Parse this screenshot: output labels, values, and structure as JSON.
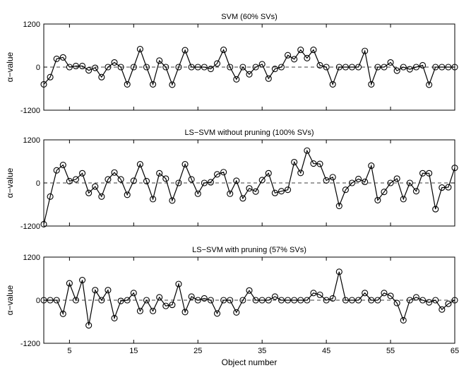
{
  "figure": {
    "xlabel": "Object number"
  },
  "chart_data": [
    {
      "type": "line",
      "title": "SVM (60% SVs)",
      "xlabel": "",
      "ylabel": "α−value",
      "xlim": [
        1,
        65
      ],
      "ylim": [
        -1200,
        1200
      ],
      "yticks": [
        -1200,
        0,
        1200
      ],
      "xticks": [
        5,
        15,
        25,
        35,
        45,
        55,
        65
      ],
      "marker": "circle",
      "reference_line": {
        "y": 0,
        "style": "dashed"
      },
      "x": [
        1,
        2,
        3,
        4,
        5,
        6,
        7,
        8,
        9,
        10,
        11,
        12,
        13,
        14,
        15,
        16,
        17,
        18,
        19,
        20,
        21,
        22,
        23,
        24,
        25,
        26,
        27,
        28,
        29,
        30,
        31,
        32,
        33,
        34,
        35,
        36,
        37,
        38,
        39,
        40,
        41,
        42,
        43,
        44,
        45,
        46,
        47,
        48,
        49,
        50,
        51,
        52,
        53,
        54,
        55,
        56,
        57,
        58,
        59,
        60,
        61,
        62,
        63,
        64,
        65
      ],
      "values": [
        -480,
        -280,
        230,
        270,
        0,
        30,
        30,
        -90,
        -20,
        -280,
        0,
        130,
        0,
        -480,
        0,
        500,
        0,
        -480,
        180,
        0,
        -490,
        0,
        470,
        0,
        0,
        0,
        -50,
        100,
        480,
        0,
        -340,
        0,
        -200,
        0,
        80,
        -320,
        -50,
        0,
        330,
        220,
        480,
        250,
        480,
        50,
        0,
        -480,
        0,
        0,
        0,
        0,
        450,
        -480,
        0,
        0,
        130,
        -100,
        0,
        -60,
        0,
        50,
        -490,
        0,
        0,
        0,
        0
      ]
    },
    {
      "type": "line",
      "title": "LS−SVM without pruning (100% SVs)",
      "xlabel": "",
      "ylabel": "α−value",
      "xlim": [
        1,
        65
      ],
      "ylim": [
        -1200,
        1200
      ],
      "yticks": [
        -1200,
        0,
        1200
      ],
      "xticks": [
        5,
        15,
        25,
        35,
        45,
        55,
        65
      ],
      "marker": "circle",
      "reference_line": {
        "y": 0,
        "style": "dashed"
      },
      "x": [
        1,
        2,
        3,
        4,
        5,
        6,
        7,
        8,
        9,
        10,
        11,
        12,
        13,
        14,
        15,
        16,
        17,
        18,
        19,
        20,
        21,
        22,
        23,
        24,
        25,
        26,
        27,
        28,
        29,
        30,
        31,
        32,
        33,
        34,
        35,
        36,
        37,
        38,
        39,
        40,
        41,
        42,
        43,
        44,
        45,
        46,
        47,
        48,
        49,
        50,
        51,
        52,
        53,
        54,
        55,
        56,
        57,
        58,
        59,
        60,
        61,
        62,
        63,
        64,
        65
      ],
      "values": [
        -1150,
        -380,
        350,
        500,
        50,
        100,
        270,
        -280,
        -100,
        -380,
        100,
        290,
        100,
        -330,
        60,
        520,
        50,
        -450,
        270,
        120,
        -490,
        0,
        520,
        100,
        -300,
        0,
        20,
        240,
        300,
        -300,
        60,
        -430,
        -150,
        -240,
        80,
        270,
        -280,
        -230,
        -190,
        580,
        280,
        900,
        540,
        530,
        70,
        160,
        -640,
        -190,
        0,
        110,
        30,
        480,
        -480,
        -250,
        0,
        120,
        -450,
        0,
        -230,
        270,
        270,
        -730,
        -130,
        -120,
        420
      ]
    },
    {
      "type": "line",
      "title": "LS−SVM with pruning (57% SVs)",
      "xlabel": "Object number",
      "ylabel": "α−value",
      "xlim": [
        1,
        65
      ],
      "ylim": [
        -1200,
        1200
      ],
      "yticks": [
        -1200,
        0,
        1200
      ],
      "xticks": [
        5,
        15,
        25,
        35,
        45,
        55,
        65
      ],
      "marker": "circle",
      "reference_line": {
        "y": 0,
        "style": "dashed"
      },
      "x": [
        1,
        2,
        3,
        4,
        5,
        6,
        7,
        8,
        9,
        10,
        11,
        12,
        13,
        14,
        15,
        16,
        17,
        18,
        19,
        20,
        21,
        22,
        23,
        24,
        25,
        26,
        27,
        28,
        29,
        30,
        31,
        32,
        33,
        34,
        35,
        36,
        37,
        38,
        39,
        40,
        41,
        42,
        43,
        44,
        45,
        46,
        47,
        48,
        49,
        50,
        51,
        52,
        53,
        54,
        55,
        56,
        57,
        58,
        59,
        60,
        61,
        62,
        63,
        64,
        65
      ],
      "values": [
        0,
        0,
        0,
        -380,
        470,
        0,
        560,
        -700,
        280,
        0,
        280,
        -500,
        -20,
        0,
        200,
        -300,
        0,
        -300,
        80,
        -160,
        -130,
        450,
        -330,
        100,
        0,
        50,
        0,
        -370,
        0,
        0,
        -340,
        0,
        270,
        0,
        0,
        0,
        100,
        0,
        0,
        0,
        0,
        0,
        200,
        150,
        0,
        50,
        790,
        0,
        0,
        0,
        200,
        0,
        0,
        200,
        120,
        -80,
        -560,
        0,
        80,
        0,
        -60,
        0,
        -260,
        -100,
        0
      ]
    }
  ]
}
